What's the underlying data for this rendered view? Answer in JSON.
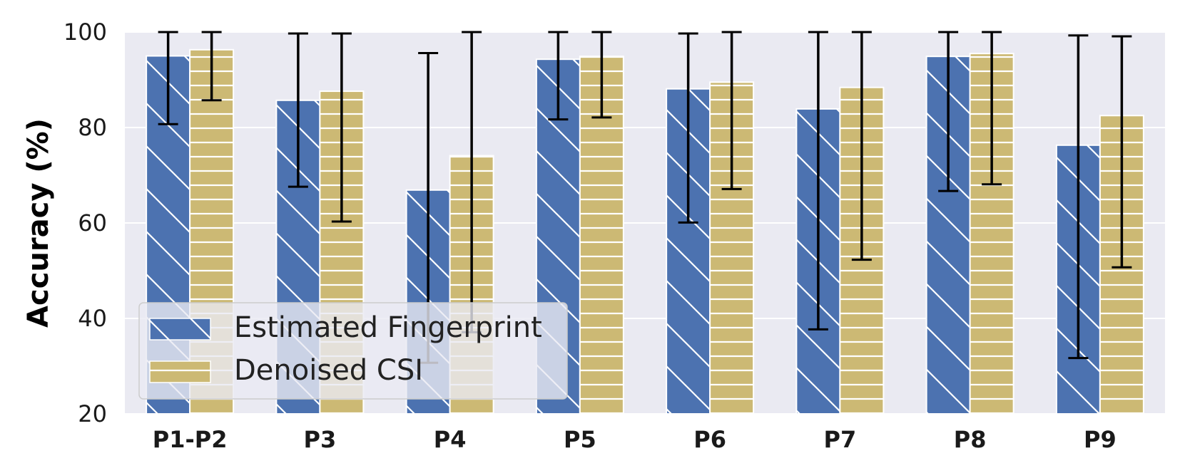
{
  "chart_data": {
    "type": "bar",
    "title": "",
    "xlabel": "",
    "ylabel": "Accuracy (%)",
    "ylim": [
      20,
      100
    ],
    "yticks": [
      20,
      40,
      60,
      80,
      100
    ],
    "grid": true,
    "legend_position": "lower-left",
    "categories": [
      "P1-P2",
      "P3",
      "P4",
      "P5",
      "P6",
      "P7",
      "P8",
      "P9"
    ],
    "series": [
      {
        "name": "Estimated Fingerprint",
        "color": "#4C72B0",
        "hatch": "diagonal",
        "values": [
          95.0,
          85.7,
          66.9,
          94.3,
          88.1,
          83.9,
          94.9,
          76.3
        ],
        "error_low": [
          80.7,
          67.6,
          30.7,
          81.7,
          60.1,
          37.7,
          66.7,
          31.7
        ],
        "error_high": [
          100,
          99.7,
          95.6,
          100,
          99.7,
          100,
          100,
          99.3
        ]
      },
      {
        "name": "Denoised CSI",
        "color": "#CCB974",
        "hatch": "horizontal",
        "values": [
          96.3,
          87.6,
          74.1,
          94.9,
          89.5,
          88.4,
          95.5,
          82.5
        ],
        "error_low": [
          85.7,
          60.3,
          37.1,
          82.1,
          67.1,
          52.3,
          68.1,
          50.7
        ],
        "error_high": [
          100,
          99.7,
          100,
          100,
          100,
          100,
          100,
          99.1
        ]
      }
    ]
  }
}
